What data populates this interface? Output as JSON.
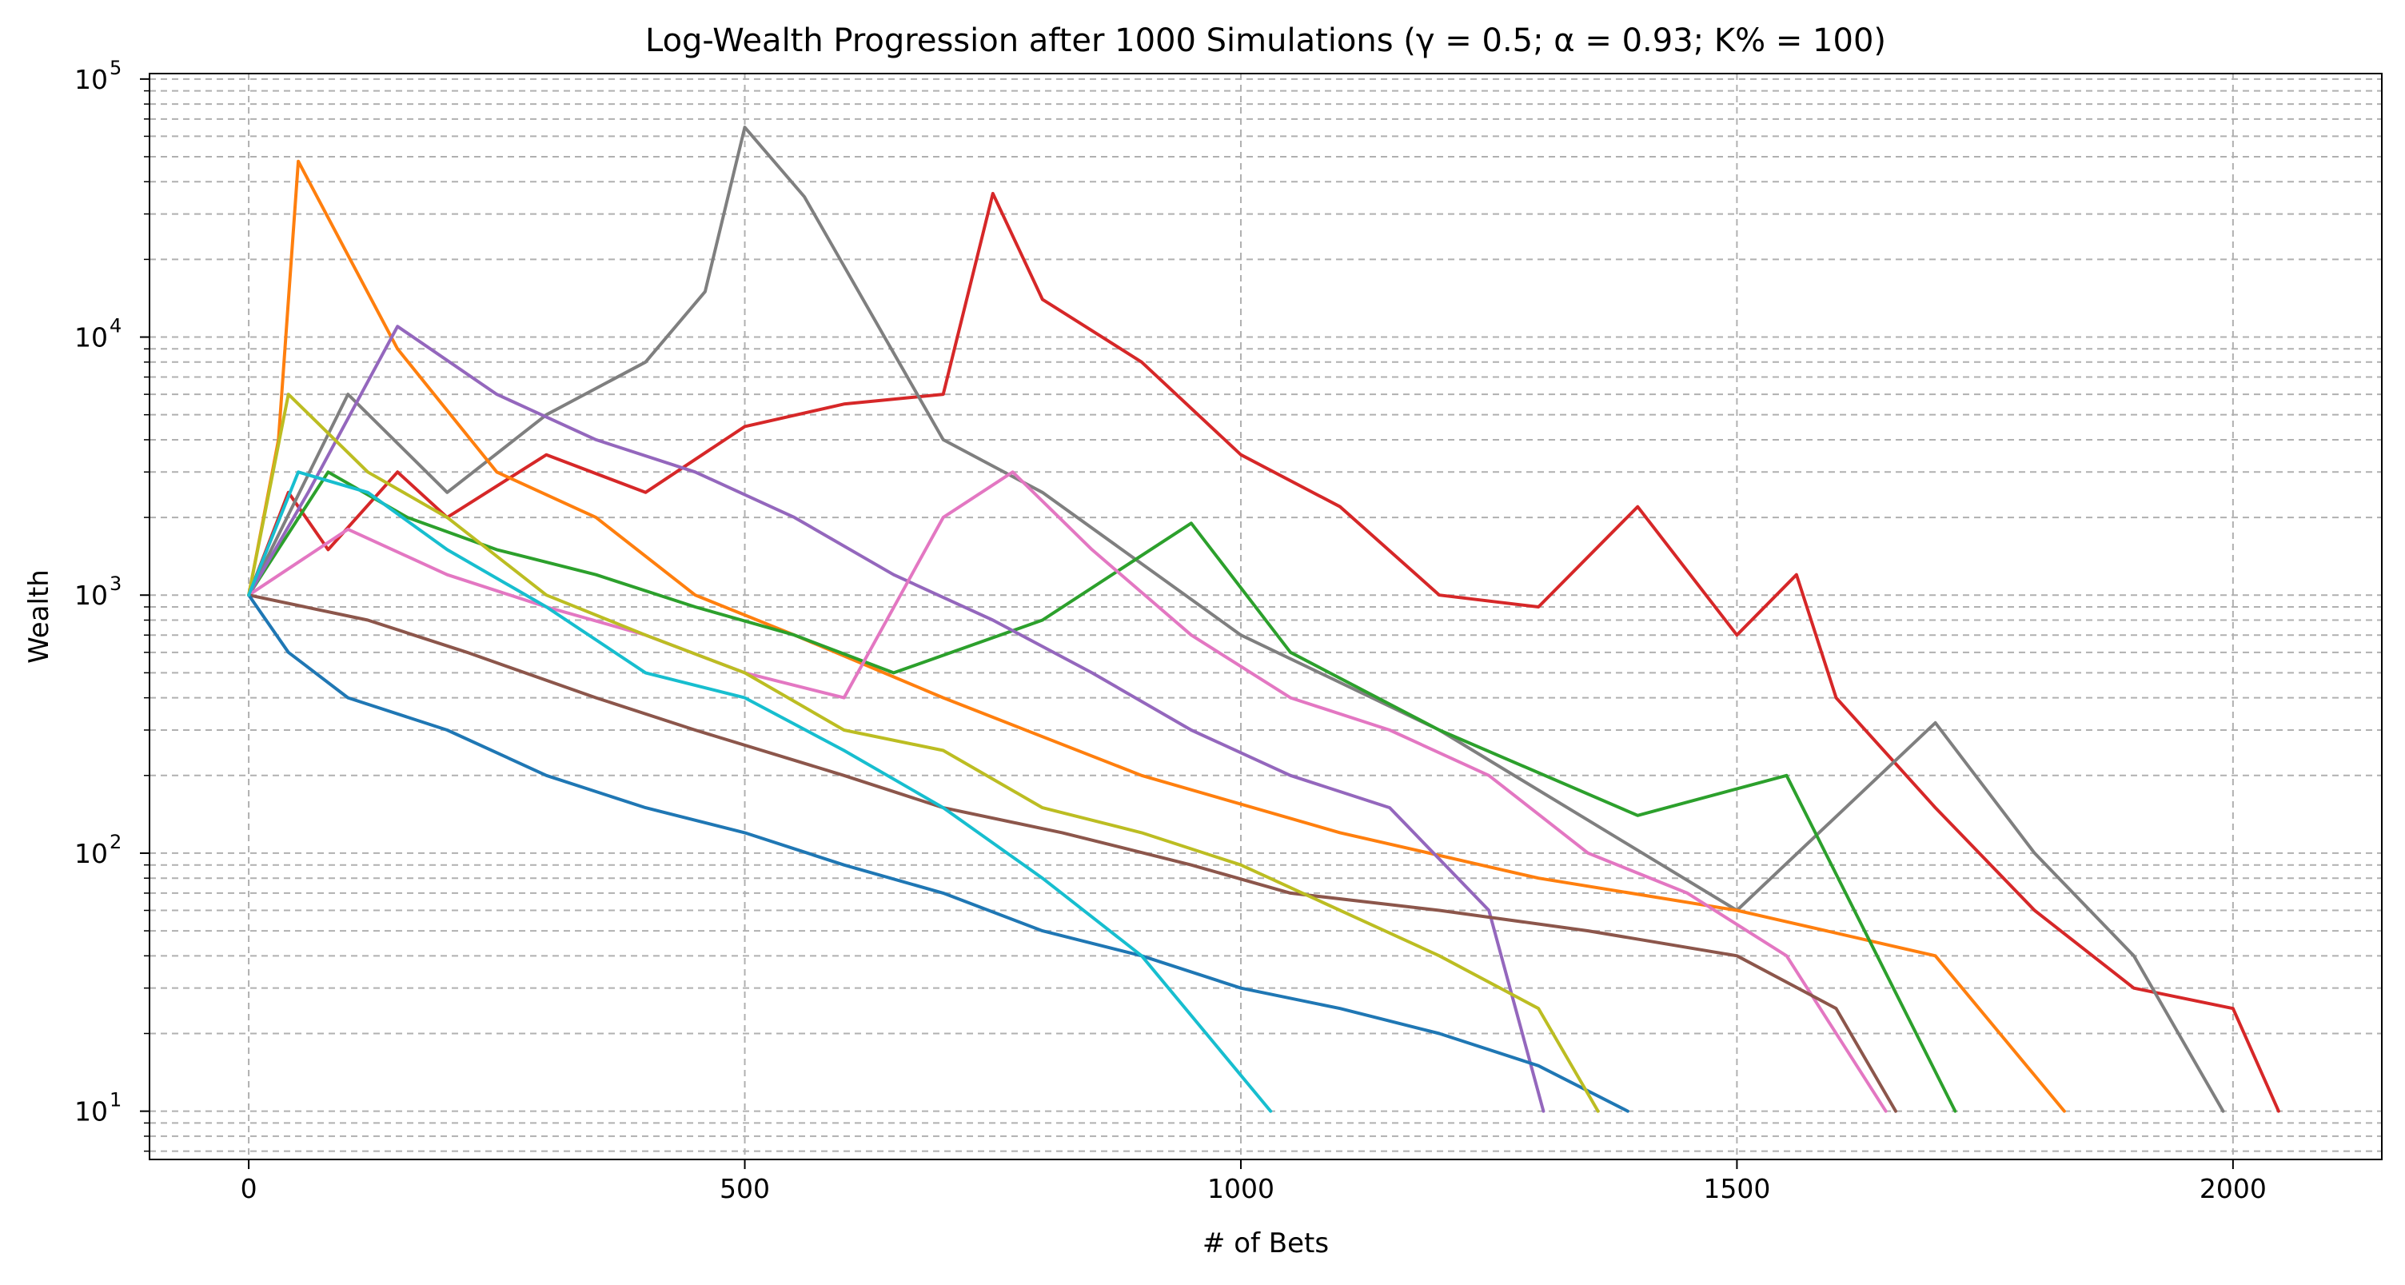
{
  "chart_data": {
    "type": "line",
    "title": "Log-Wealth Progression after 1000 Simulations (γ = 0.5; α = 0.93; K% = 100)",
    "xlabel": "# of Bets",
    "ylabel": "Wealth",
    "xlim": [
      -100,
      2150
    ],
    "ylim": [
      6.5,
      105000
    ],
    "yscale": "log",
    "x_ticks": [
      0,
      500,
      1000,
      1500,
      2000
    ],
    "x_tick_labels": [
      "0",
      "500",
      "1000",
      "1500",
      "2000"
    ],
    "y_ticks": [
      10,
      100,
      1000,
      10000,
      100000
    ],
    "y_tick_labels": [
      {
        "base": "10",
        "exp": "1"
      },
      {
        "base": "10",
        "exp": "2"
      },
      {
        "base": "10",
        "exp": "3"
      },
      {
        "base": "10",
        "exp": "4"
      },
      {
        "base": "10",
        "exp": "5"
      }
    ],
    "grid": true,
    "grid_style": "dashed",
    "colors": [
      "#1f77b4",
      "#ff7f0e",
      "#2ca02c",
      "#d62728",
      "#9467bd",
      "#8c564b",
      "#e377c2",
      "#7f7f7f",
      "#bcbd22",
      "#17becf"
    ],
    "series": [
      {
        "color": "#d62728",
        "x": [
          0,
          40,
          80,
          150,
          200,
          300,
          400,
          500,
          600,
          700,
          750,
          800,
          900,
          1000,
          1100,
          1200,
          1300,
          1400,
          1500,
          1560,
          1600,
          1700,
          1800,
          1900,
          2000,
          2046
        ],
        "y": [
          1000,
          2500,
          1500,
          3000,
          2000,
          3500,
          2500,
          4500,
          5500,
          6000,
          36000,
          14000,
          8000,
          3500,
          2200,
          1000,
          900,
          2200,
          700,
          1200,
          400,
          150,
          60,
          30,
          25,
          10
        ]
      },
      {
        "color": "#7f7f7f",
        "x": [
          0,
          100,
          200,
          300,
          400,
          460,
          500,
          560,
          700,
          800,
          1000,
          1200,
          1500,
          1700,
          1800,
          1900,
          1990
        ],
        "y": [
          1000,
          6000,
          2500,
          5000,
          8000,
          15000,
          65000,
          35000,
          4000,
          2500,
          700,
          300,
          60,
          320,
          100,
          40,
          10
        ]
      },
      {
        "color": "#ff7f0e",
        "x": [
          0,
          30,
          50,
          150,
          250,
          350,
          450,
          550,
          700,
          900,
          1100,
          1300,
          1500,
          1700,
          1830
        ],
        "y": [
          1000,
          4000,
          48000,
          9000,
          3000,
          2000,
          1000,
          700,
          400,
          200,
          120,
          80,
          60,
          40,
          10
        ]
      },
      {
        "color": "#2ca02c",
        "x": [
          0,
          80,
          160,
          250,
          350,
          450,
          550,
          650,
          800,
          950,
          1050,
          1200,
          1400,
          1550,
          1720
        ],
        "y": [
          1000,
          3000,
          2000,
          1500,
          1200,
          900,
          700,
          500,
          800,
          1900,
          600,
          300,
          140,
          200,
          10
        ]
      },
      {
        "color": "#9467bd",
        "x": [
          0,
          60,
          150,
          250,
          350,
          450,
          550,
          650,
          750,
          850,
          950,
          1050,
          1150,
          1250,
          1305
        ],
        "y": [
          1000,
          2500,
          11000,
          6000,
          4000,
          3000,
          2000,
          1200,
          800,
          500,
          300,
          200,
          150,
          60,
          10
        ]
      },
      {
        "color": "#e377c2",
        "x": [
          0,
          100,
          200,
          300,
          400,
          500,
          600,
          700,
          770,
          850,
          950,
          1050,
          1150,
          1250,
          1350,
          1450,
          1550,
          1650
        ],
        "y": [
          1000,
          1800,
          1200,
          900,
          700,
          500,
          400,
          2000,
          3000,
          1500,
          700,
          400,
          300,
          200,
          100,
          70,
          40,
          10
        ]
      },
      {
        "color": "#8c564b",
        "x": [
          0,
          120,
          220,
          350,
          450,
          600,
          700,
          820,
          950,
          1050,
          1200,
          1350,
          1500,
          1600,
          1660
        ],
        "y": [
          1000,
          800,
          600,
          400,
          300,
          200,
          150,
          120,
          90,
          70,
          60,
          50,
          40,
          25,
          10
        ]
      },
      {
        "color": "#1f77b4",
        "x": [
          0,
          40,
          100,
          200,
          300,
          400,
          500,
          600,
          700,
          800,
          900,
          1000,
          1100,
          1200,
          1300,
          1390
        ],
        "y": [
          1000,
          600,
          400,
          300,
          200,
          150,
          120,
          90,
          70,
          50,
          40,
          30,
          25,
          20,
          15,
          10
        ]
      },
      {
        "color": "#bcbd22",
        "x": [
          0,
          40,
          120,
          200,
          300,
          400,
          500,
          600,
          700,
          800,
          900,
          1000,
          1100,
          1200,
          1300,
          1360
        ],
        "y": [
          1000,
          6000,
          3000,
          2000,
          1000,
          700,
          500,
          300,
          250,
          150,
          120,
          90,
          60,
          40,
          25,
          10
        ]
      },
      {
        "color": "#17becf",
        "x": [
          0,
          50,
          120,
          200,
          300,
          400,
          500,
          600,
          700,
          800,
          900,
          1030
        ],
        "y": [
          1000,
          3000,
          2500,
          1500,
          900,
          500,
          400,
          250,
          150,
          80,
          40,
          10
        ]
      }
    ]
  }
}
